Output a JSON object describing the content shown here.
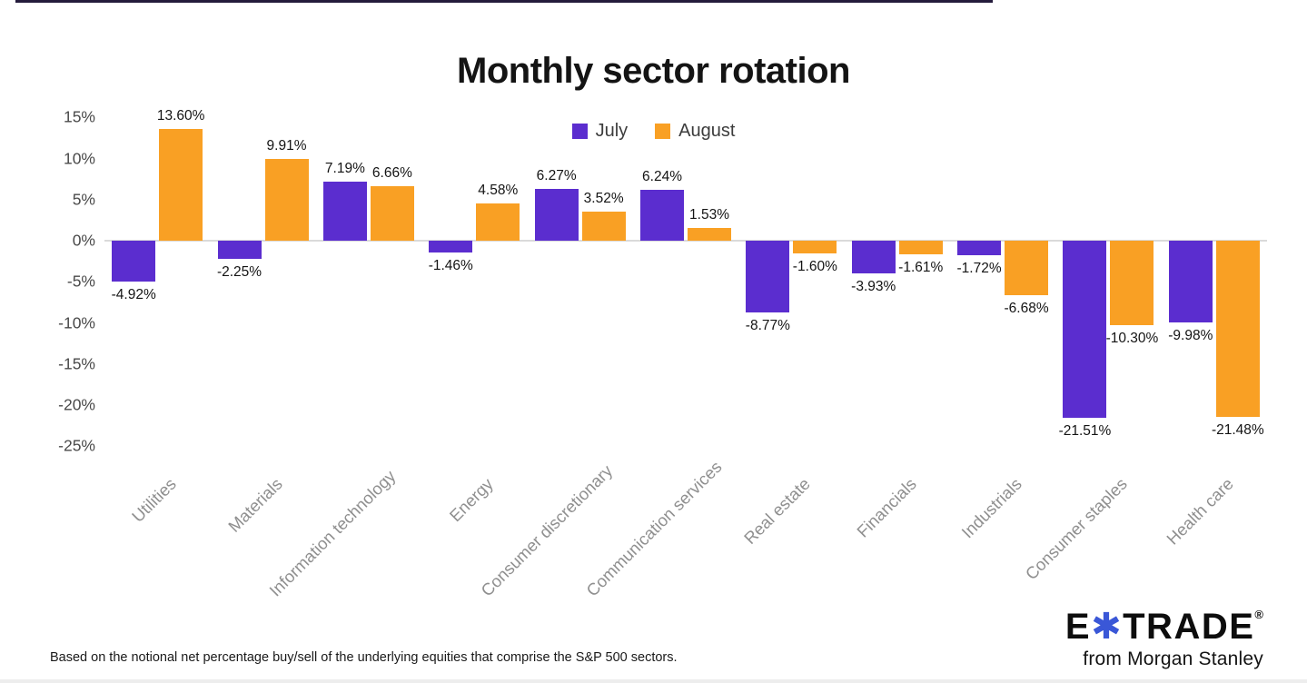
{
  "page": {
    "footnote": "Based on the notional net percentage buy/sell of the underlying equities that comprise the S&P 500 sectors.",
    "logo": {
      "e": "E",
      "asterisk": "✱",
      "trade": "TRADE",
      "registered": "®",
      "tagline": "from Morgan Stanley",
      "asterisk_color": "#3a57d7",
      "wordmark_color": "#0d0d0d"
    }
  },
  "chart_data": {
    "type": "bar",
    "title": "Monthly sector rotation",
    "categories": [
      "Utilities",
      "Materials",
      "Information technology",
      "Energy",
      "Consumer discretionary",
      "Communication services",
      "Real estate",
      "Financials",
      "Industrials",
      "Consumer staples",
      "Health care"
    ],
    "series": [
      {
        "name": "July",
        "color": "#5b2dcf",
        "values": [
          -4.92,
          -2.25,
          7.19,
          -1.46,
          6.27,
          6.24,
          -8.77,
          -3.93,
          -1.72,
          -21.51,
          -9.98
        ],
        "labels": [
          "-4.92%",
          "-2.25%",
          "7.19%",
          "-1.46%",
          "6.27%",
          "6.24%",
          "-8.77%",
          "-3.93%",
          "-1.72%",
          "-21.51%",
          "-9.98%"
        ]
      },
      {
        "name": "August",
        "color": "#f9a024",
        "values": [
          13.6,
          9.91,
          6.66,
          4.58,
          3.52,
          1.53,
          -1.6,
          -1.61,
          -6.68,
          -10.3,
          -21.48
        ],
        "labels": [
          "13.60%",
          "9.91%",
          "6.66%",
          "4.58%",
          "3.52%",
          "1.53%",
          "-1.60%",
          "-1.61%",
          "-6.68%",
          "-10.30%",
          "-21.48%"
        ]
      }
    ],
    "y_ticks": [
      15,
      10,
      5,
      0,
      -5,
      -10,
      -15,
      -20,
      -25
    ],
    "y_tick_labels": [
      "15%",
      "10%",
      "5%",
      "0%",
      "-5%",
      "-10%",
      "-15%",
      "-20%",
      "-25%"
    ],
    "ylim": [
      -25,
      15
    ],
    "xlabel": "",
    "ylabel": "",
    "grid": false,
    "legend_position": "top-center",
    "zero_line_color": "#dadada"
  }
}
